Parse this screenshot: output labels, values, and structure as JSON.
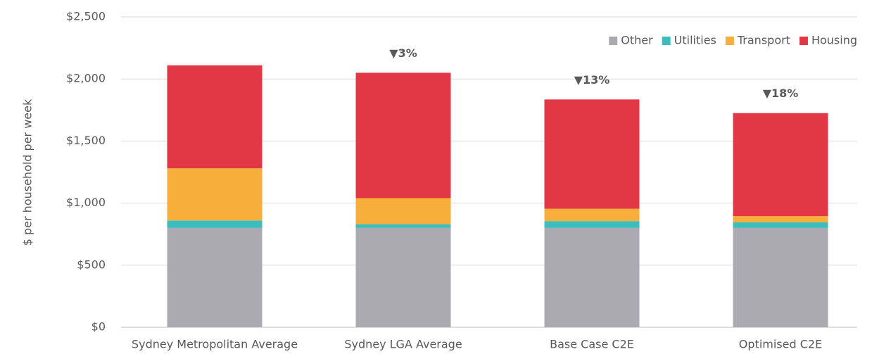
{
  "chart_data": {
    "type": "stacked_bar",
    "y_label": "$ per household per week",
    "categories": [
      "Sydney Metropolitan Average",
      "Sydney LGA Average",
      "Base Case C2E",
      "Optimised C2E"
    ],
    "series": [
      {
        "name": "Other",
        "color": "#abaab0",
        "values": [
          800,
          800,
          800,
          800
        ]
      },
      {
        "name": "Utilities",
        "color": "#3cbdbd",
        "values": [
          60,
          30,
          55,
          45
        ]
      },
      {
        "name": "Transport",
        "color": "#f7ae3b",
        "values": [
          420,
          210,
          100,
          50
        ]
      },
      {
        "name": "Housing",
        "color": "#e23745",
        "values": [
          830,
          1010,
          880,
          830
        ]
      }
    ],
    "annotations": [
      null,
      "▼3%",
      "▼13%",
      "▼18%"
    ],
    "ylim": [
      0,
      2500
    ],
    "yticks": [
      {
        "value": 0,
        "label": "$0"
      },
      {
        "value": 500,
        "label": "$500"
      },
      {
        "value": 1000,
        "label": "$1,000"
      },
      {
        "value": 1500,
        "label": "$1,500"
      },
      {
        "value": 2000,
        "label": "$2,000"
      },
      {
        "value": 2500,
        "label": "$2,500"
      }
    ],
    "grid": true,
    "legend": "top-right"
  }
}
